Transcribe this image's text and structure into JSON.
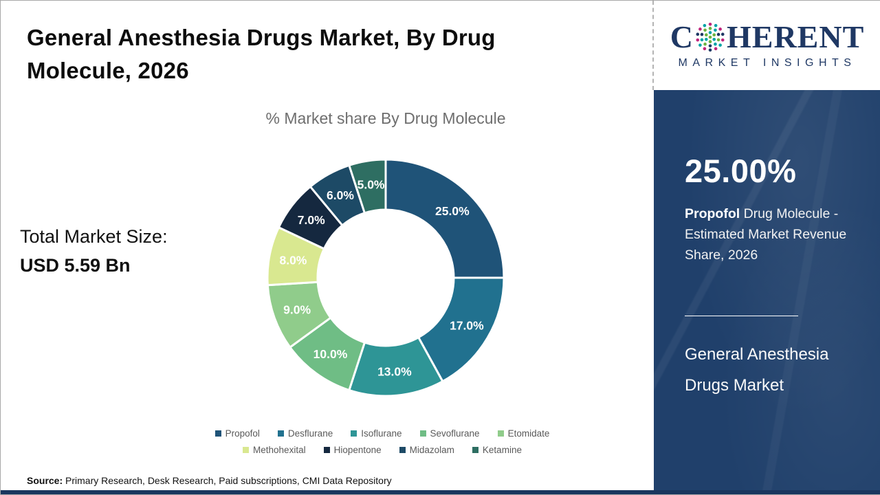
{
  "header": {
    "title": "General Anesthesia Drugs Market, By Drug Molecule, 2026"
  },
  "main": {
    "chart_subtitle": "% Market share By Drug Molecule",
    "total_market_label": "Total Market Size:",
    "total_market_value": "USD 5.59 Bn",
    "source_label": "Source:",
    "source_text": " Primary Research, Desk Research, Paid subscriptions, CMI Data Repository"
  },
  "chart_data": {
    "type": "pie",
    "donut": true,
    "title": "% Market share By Drug Molecule",
    "start_angle_deg": 0,
    "direction": "clockwise",
    "categories": [
      "Propofol",
      "Desflurane",
      "Isoflurane",
      "Sevoflurane",
      "Etomidate",
      "Methohexital",
      "Hiopentone",
      "Midazolam",
      "Ketamine"
    ],
    "values": [
      25.0,
      17.0,
      13.0,
      10.0,
      9.0,
      8.0,
      7.0,
      6.0,
      5.0
    ],
    "labels": [
      "25.0%",
      "17.0%",
      "13.0%",
      "10.0%",
      "9.0%",
      "8.0%",
      "7.0%",
      "6.0%",
      "5.0%"
    ],
    "colors": [
      "#1F5378",
      "#21718F",
      "#2E9596",
      "#6FBD85",
      "#90CC8B",
      "#D9E890",
      "#15283F",
      "#1D4A66",
      "#2E6E62"
    ],
    "legend_position": "bottom",
    "legend_rows": [
      5,
      4
    ]
  },
  "sidebar": {
    "logo": {
      "brand_c": "C",
      "brand_rest": "HERENT",
      "subtitle": "MARKET INSIGHTS"
    },
    "stat_value": "25.00%",
    "stat_highlight": "Propofol",
    "stat_rest": " Drug Molecule - Estimated Market Revenue Share, 2026",
    "panel_title": "General Anesthesia Drugs Market"
  },
  "theme": {
    "title_color": "#0D0D0D",
    "subtitle_color": "#6E6E6E",
    "legend_text_color": "#595959",
    "panel_color": "#20406B",
    "bottom_strip_color": "#19365E",
    "logo_navy": "#1F3864",
    "logo_teal": "#00A3A6",
    "logo_green": "#6CB33F",
    "logo_magenta": "#C0267E"
  }
}
